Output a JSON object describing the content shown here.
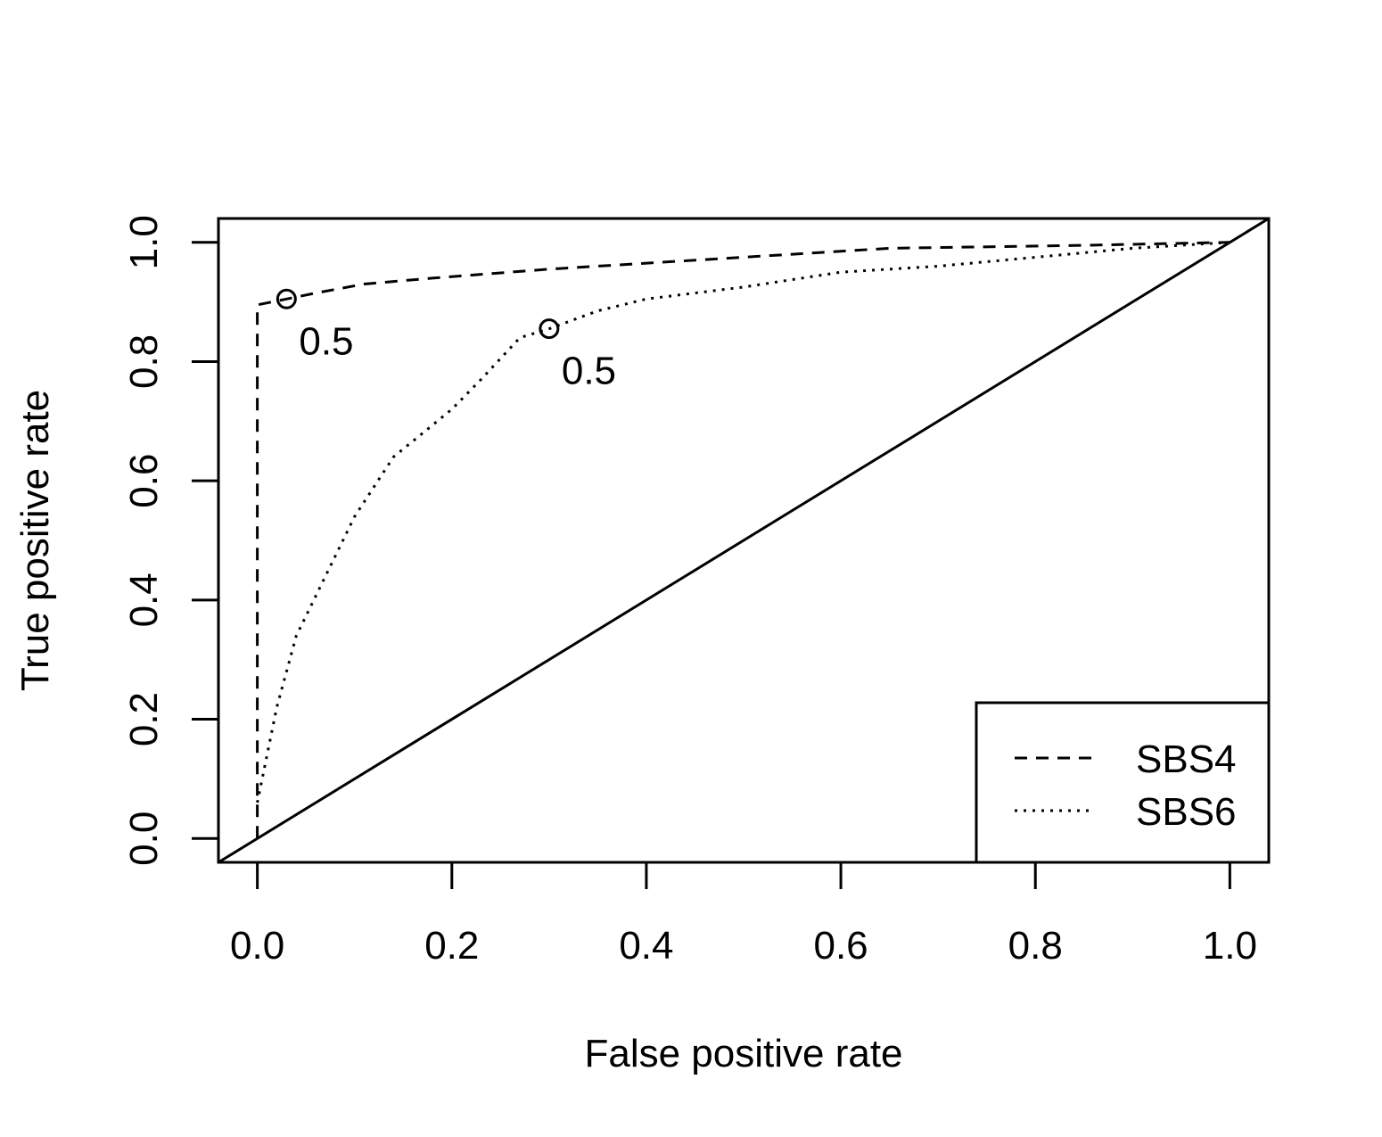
{
  "chart_data": {
    "type": "line",
    "title": "",
    "xlabel": "False positive rate",
    "ylabel": "True positive rate",
    "xlim": [
      -0.04,
      1.04
    ],
    "ylim": [
      -0.04,
      1.04
    ],
    "x_ticks": [
      0.0,
      0.2,
      0.4,
      0.6,
      0.8,
      1.0
    ],
    "x_tick_labels": [
      "0.0",
      "0.2",
      "0.4",
      "0.6",
      "0.8",
      "1.0"
    ],
    "y_ticks": [
      0.0,
      0.2,
      0.4,
      0.6,
      0.8,
      1.0
    ],
    "y_tick_labels": [
      "0.0",
      "0.2",
      "0.4",
      "0.6",
      "0.8",
      "1.0"
    ],
    "grid": false,
    "legend_position": "bottom-right",
    "diagonal": {
      "x": [
        -0.04,
        1.04
      ],
      "y": [
        -0.04,
        1.04
      ],
      "linestyle": "solid"
    },
    "series": [
      {
        "name": "SBS4",
        "linestyle": "dashed",
        "x": [
          0.0,
          0.0,
          0.03,
          0.06,
          0.11,
          0.18,
          0.3,
          0.45,
          0.65,
          0.85,
          1.0
        ],
        "y": [
          0.0,
          0.895,
          0.905,
          0.915,
          0.93,
          0.94,
          0.955,
          0.97,
          0.99,
          0.995,
          1.0
        ],
        "marker": {
          "x": 0.03,
          "y": 0.905,
          "label": "0.5"
        }
      },
      {
        "name": "SBS6",
        "linestyle": "dotted",
        "x": [
          0.0,
          0.01,
          0.02,
          0.04,
          0.07,
          0.1,
          0.14,
          0.17,
          0.2,
          0.23,
          0.27,
          0.3,
          0.35,
          0.4,
          0.5,
          0.6,
          0.7,
          0.8,
          0.9,
          1.0
        ],
        "y": [
          0.06,
          0.14,
          0.22,
          0.34,
          0.44,
          0.54,
          0.64,
          0.68,
          0.72,
          0.77,
          0.84,
          0.855,
          0.885,
          0.905,
          0.925,
          0.95,
          0.96,
          0.975,
          0.99,
          1.0
        ],
        "marker": {
          "x": 0.3,
          "y": 0.855,
          "label": "0.5"
        }
      }
    ]
  }
}
